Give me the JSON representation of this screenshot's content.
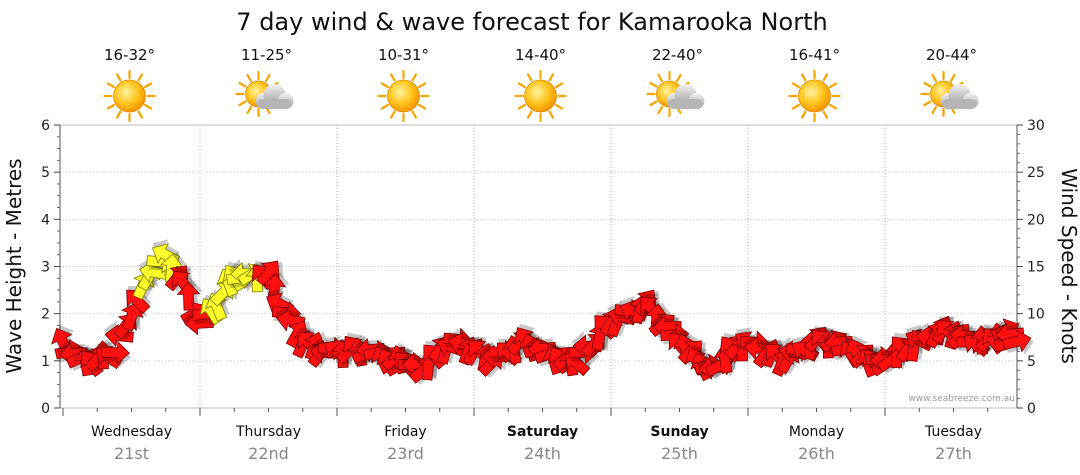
{
  "chart_data": {
    "type": "line",
    "title": "7 day wind & wave forecast for Kamarooka North",
    "ylabel_left": "Wave Height - Metres",
    "ylabel_right": "Wind Speed - Knots",
    "ylim_left": [
      0,
      6
    ],
    "ylim_right": [
      0,
      30
    ],
    "yticks_left": [
      "0",
      "1",
      "2",
      "3",
      "4",
      "5",
      "6"
    ],
    "yticks_right": [
      "0",
      "5",
      "10",
      "15",
      "20",
      "25",
      "30"
    ],
    "credit": "www.seabreeze.com.au",
    "days": [
      {
        "day": "Wednesday",
        "date": "21st",
        "temp": "16-32°",
        "icon": "sun-icon",
        "bold": false
      },
      {
        "day": "Thursday",
        "date": "22nd",
        "temp": "11-25°",
        "icon": "sun-cloud-icon",
        "bold": false
      },
      {
        "day": "Friday",
        "date": "23rd",
        "temp": "10-31°",
        "icon": "sun-icon",
        "bold": false
      },
      {
        "day": "Saturday",
        "date": "24th",
        "temp": "14-40°",
        "icon": "sun-icon",
        "bold": true
      },
      {
        "day": "Sunday",
        "date": "25th",
        "temp": "22-40°",
        "icon": "sun-cloud-icon",
        "bold": true
      },
      {
        "day": "Monday",
        "date": "26th",
        "temp": "16-41°",
        "icon": "sun-icon",
        "bold": false
      },
      {
        "day": "Tuesday",
        "date": "27th",
        "temp": "20-44°",
        "icon": "sun-cloud-icon",
        "bold": false
      }
    ],
    "wind_series": {
      "name": "Wind speed (knots)",
      "x_hours": [
        0,
        3,
        6,
        9,
        12,
        15,
        18,
        21,
        24,
        27,
        30,
        33,
        36,
        39,
        42,
        45,
        48,
        51,
        54,
        57,
        60,
        63,
        66,
        69,
        72,
        75,
        78,
        81,
        84,
        87,
        90,
        93,
        96,
        99,
        102,
        105,
        108,
        111,
        114,
        117,
        120,
        123,
        126,
        129,
        132,
        135,
        138,
        141,
        144,
        147,
        150,
        153,
        156,
        159,
        162,
        165,
        168
      ],
      "knots": [
        7,
        5,
        5,
        6,
        10,
        14,
        16,
        13,
        9,
        11,
        14,
        14,
        14,
        10,
        7,
        6,
        6,
        6,
        6,
        5,
        5,
        4,
        6,
        7,
        6,
        5,
        6,
        7,
        6,
        5,
        5,
        7,
        9,
        10,
        11,
        9,
        7,
        5,
        4,
        6,
        7,
        6,
        5,
        6,
        7,
        7,
        6,
        5,
        5,
        6,
        7,
        8,
        8,
        7,
        7,
        8,
        7
      ],
      "colors": [
        "red",
        "red",
        "red",
        "red",
        "red",
        "yellow",
        "yellow",
        "red",
        "red",
        "yellow",
        "yellow",
        "yellow",
        "red",
        "red",
        "red",
        "red",
        "red",
        "red",
        "red",
        "red",
        "red",
        "red",
        "red",
        "red",
        "red",
        "red",
        "red",
        "red",
        "red",
        "red",
        "red",
        "red",
        "red",
        "red",
        "red",
        "red",
        "red",
        "red",
        "red",
        "red",
        "red",
        "red",
        "red",
        "red",
        "red",
        "red",
        "red",
        "red",
        "red",
        "red",
        "red",
        "red",
        "red",
        "red",
        "red",
        "red",
        "red"
      ]
    }
  }
}
